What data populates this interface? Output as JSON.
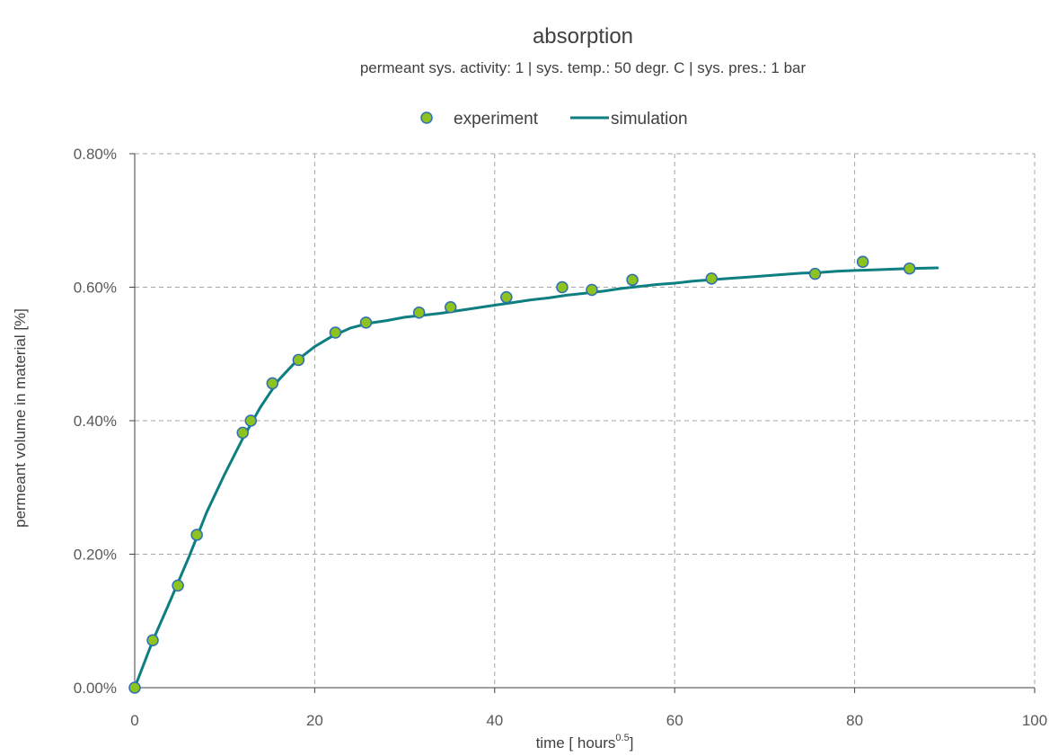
{
  "chart_data": {
    "type": "scatter",
    "title": "absorption",
    "subtitle": "permeant sys. activity: 1 | sys. temp.: 50 degr. C | sys. pres.: 1 bar",
    "xlabel": "time [ hours",
    "xlabel_superscript": "0.5",
    "xlabel_suffix": "]",
    "ylabel": "permeant volume in material [%]",
    "xlim": [
      0,
      100
    ],
    "ylim": [
      0,
      0.8
    ],
    "x_ticks": [
      0,
      20,
      40,
      60,
      80,
      100
    ],
    "y_ticks": [
      0,
      0.2,
      0.4,
      0.6,
      0.8
    ],
    "x_tick_labels": [
      "0",
      "20",
      "40",
      "60",
      "80",
      "100"
    ],
    "y_tick_labels": [
      "0.00%",
      "0.20%",
      "0.40%",
      "0.60%",
      "0.80%"
    ],
    "grid": true,
    "legend_position": "top-center",
    "series": [
      {
        "name": "experiment",
        "kind": "scatter",
        "color": "#8dc31f",
        "edge_color": "#2e6eb5",
        "x": [
          0,
          2,
          4.8,
          6.9,
          12,
          12.9,
          15.3,
          18.2,
          22.3,
          25.7,
          31.6,
          35.1,
          41.3,
          47.5,
          50.8,
          55.3,
          64.1,
          75.6,
          80.9,
          86.1
        ],
        "y": [
          0,
          0.071,
          0.153,
          0.229,
          0.382,
          0.4,
          0.456,
          0.491,
          0.532,
          0.547,
          0.562,
          0.57,
          0.585,
          0.6,
          0.596,
          0.611,
          0.613,
          0.62,
          0.638,
          0.628
        ]
      },
      {
        "name": "simulation",
        "kind": "line",
        "color": "#0e7f80",
        "x": [
          0,
          1,
          2,
          4,
          6,
          8,
          10,
          12,
          14,
          16,
          18,
          20,
          22,
          24,
          26,
          28,
          30,
          32,
          34,
          36,
          38,
          40,
          42,
          44,
          46,
          48,
          50,
          52,
          54,
          56,
          58,
          60,
          62,
          64,
          66,
          68,
          70,
          72,
          74,
          76,
          78,
          80,
          82,
          84,
          86,
          89.2
        ],
        "y": [
          0,
          0.035,
          0.07,
          0.132,
          0.195,
          0.263,
          0.32,
          0.373,
          0.421,
          0.461,
          0.49,
          0.511,
          0.527,
          0.539,
          0.546,
          0.55,
          0.555,
          0.558,
          0.561,
          0.565,
          0.569,
          0.573,
          0.577,
          0.581,
          0.584,
          0.588,
          0.591,
          0.594,
          0.598,
          0.601,
          0.604,
          0.606,
          0.609,
          0.611,
          0.613,
          0.615,
          0.617,
          0.619,
          0.621,
          0.622,
          0.624,
          0.625,
          0.626,
          0.627,
          0.628,
          0.629
        ]
      }
    ]
  }
}
